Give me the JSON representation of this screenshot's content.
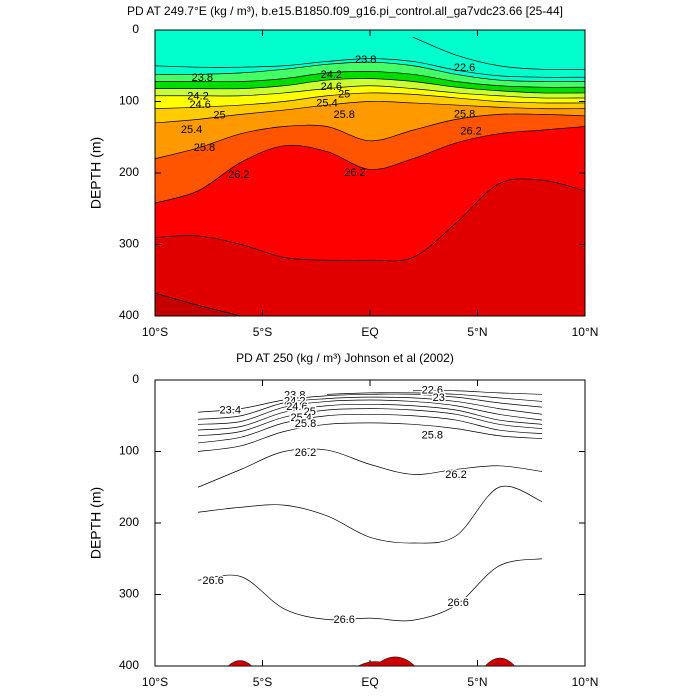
{
  "chart_data": [
    {
      "type": "contour",
      "title": "PD AT 249.7°E (kg / m³), b.e15.B1850.f09_g16.pi_control.all_ga7vdc23.66 [25-44]",
      "ylabel": "DEPTH (m)",
      "xlim": [
        -10,
        10
      ],
      "ylim": [
        400,
        0
      ],
      "xticks": [
        {
          "value": -10,
          "label": "10°S"
        },
        {
          "value": -5,
          "label": "5°S"
        },
        {
          "value": 0,
          "label": "EQ"
        },
        {
          "value": 5,
          "label": "5°N"
        },
        {
          "value": 10,
          "label": "10°N"
        }
      ],
      "yticks": [
        0,
        100,
        200,
        300,
        400
      ],
      "background_color": "#00ffcc",
      "x": [
        -10,
        -8,
        -6,
        -4,
        -2,
        0,
        2,
        4,
        6,
        8,
        10
      ],
      "contours": [
        {
          "level": 22.6,
          "depths": [
            null,
            null,
            null,
            null,
            null,
            null,
            10,
            35,
            50,
            55,
            55
          ]
        },
        {
          "level": 23.4,
          "depths": [
            50,
            52,
            52,
            50,
            44,
            40,
            44,
            56,
            64,
            66,
            66
          ]
        },
        {
          "level": 23.8,
          "color": "#44ff66",
          "depths": [
            62,
            62,
            60,
            55,
            48,
            45,
            50,
            62,
            70,
            72,
            72
          ]
        },
        {
          "level": 24.2,
          "color": "#00dd00",
          "depths": [
            72,
            72,
            72,
            68,
            60,
            58,
            62,
            72,
            78,
            80,
            80
          ]
        },
        {
          "level": 24.6,
          "color": "#ccff33",
          "depths": [
            82,
            82,
            82,
            78,
            70,
            68,
            72,
            80,
            85,
            88,
            88
          ]
        },
        {
          "level": 25,
          "color": "#ffff00",
          "depths": [
            92,
            92,
            92,
            88,
            82,
            78,
            82,
            88,
            92,
            95,
            95
          ]
        },
        {
          "level": 25.4,
          "color": "#ffcc00",
          "depths": [
            110,
            108,
            105,
            100,
            92,
            88,
            90,
            95,
            100,
            102,
            102
          ]
        },
        {
          "level": 25.8,
          "color": "#ff9900",
          "depths": [
            130,
            125,
            118,
            112,
            105,
            100,
            102,
            105,
            108,
            110,
            110
          ]
        },
        {
          "level": 26,
          "color": "#ff5500",
          "depths": [
            180,
            165,
            145,
            135,
            135,
            155,
            140,
            125,
            118,
            118,
            120
          ]
        },
        {
          "level": 26.2,
          "color": "#ff0000",
          "depths": [
            242,
            225,
            185,
            162,
            170,
            195,
            180,
            158,
            145,
            140,
            135
          ]
        },
        {
          "level": 26.6,
          "color": "#e00000",
          "depths": [
            290,
            288,
            300,
            318,
            322,
            322,
            318,
            270,
            215,
            210,
            225
          ]
        },
        {
          "level": 27,
          "color": "#c40000",
          "depths": [
            368,
            385,
            400,
            null,
            null,
            null,
            null,
            null,
            null,
            null,
            null
          ]
        }
      ],
      "contour_labels": [
        {
          "level": 23.8,
          "x": -7.8,
          "y": 67
        },
        {
          "level": 24.2,
          "x": -8,
          "y": 93
        },
        {
          "level": 24.6,
          "x": -7.9,
          "y": 105
        },
        {
          "level": 25,
          "x": -7,
          "y": 120
        },
        {
          "level": 25.4,
          "x": -8.3,
          "y": 140
        },
        {
          "level": 25.8,
          "x": -7.7,
          "y": 165
        },
        {
          "level": 26.2,
          "x": -6.1,
          "y": 203
        },
        {
          "level": 23.8,
          "x": -0.2,
          "y": 42
        },
        {
          "level": 24.2,
          "x": -1.8,
          "y": 63
        },
        {
          "level": 24.6,
          "x": -1.8,
          "y": 80
        },
        {
          "level": 25,
          "x": -1.2,
          "y": 90
        },
        {
          "level": 25.4,
          "x": -2,
          "y": 103
        },
        {
          "level": 25.8,
          "x": -1.2,
          "y": 119
        },
        {
          "level": 26.2,
          "x": -0.7,
          "y": 200
        },
        {
          "level": 22.6,
          "x": 4.4,
          "y": 53
        },
        {
          "level": 25.8,
          "x": 4.4,
          "y": 118
        },
        {
          "level": 26.2,
          "x": 4.7,
          "y": 142
        }
      ]
    },
    {
      "type": "contour",
      "title": "PD AT 250 (kg / m³) Johnson et al (2002)",
      "ylabel": "DEPTH (m)",
      "xlim": [
        -10,
        10
      ],
      "ylim": [
        400,
        0
      ],
      "xticks": [
        {
          "value": -10,
          "label": "10°S"
        },
        {
          "value": -5,
          "label": "5°S"
        },
        {
          "value": 0,
          "label": "EQ"
        },
        {
          "value": 5,
          "label": "5°N"
        },
        {
          "value": 10,
          "label": "10°N"
        }
      ],
      "yticks": [
        0,
        100,
        200,
        300,
        400
      ],
      "x": [
        -8,
        -6,
        -4,
        -2,
        0,
        2,
        4,
        6,
        8
      ],
      "contours": [
        {
          "level": 22.6,
          "depths": [
            null,
            null,
            null,
            null,
            null,
            15,
            15,
            18,
            20
          ]
        },
        {
          "level": 23,
          "depths": [
            null,
            null,
            null,
            20,
            18,
            18,
            20,
            25,
            30
          ]
        },
        {
          "level": 23.4,
          "depths": [
            45,
            40,
            28,
            22,
            20,
            20,
            24,
            32,
            38
          ]
        },
        {
          "level": 23.8,
          "depths": [
            55,
            50,
            32,
            26,
            24,
            25,
            30,
            40,
            48
          ]
        },
        {
          "level": 24.2,
          "depths": [
            62,
            58,
            38,
            30,
            28,
            30,
            36,
            48,
            56
          ]
        },
        {
          "level": 24.6,
          "depths": [
            70,
            65,
            45,
            36,
            34,
            36,
            42,
            56,
            62
          ]
        },
        {
          "level": 25,
          "depths": [
            78,
            72,
            52,
            42,
            40,
            42,
            48,
            62,
            68
          ]
        },
        {
          "level": 25.4,
          "depths": [
            88,
            80,
            60,
            50,
            48,
            50,
            56,
            70,
            75
          ]
        },
        {
          "level": 25.8,
          "depths": [
            100,
            92,
            72,
            62,
            60,
            62,
            68,
            78,
            82
          ]
        },
        {
          "level": 26.2,
          "depths": [
            150,
            125,
            100,
            98,
            118,
            132,
            125,
            120,
            128
          ]
        },
        {
          "level": 26.4,
          "depths": [
            185,
            178,
            175,
            190,
            220,
            228,
            218,
            150,
            170
          ]
        },
        {
          "level": 26.6,
          "depths": [
            280,
            275,
            320,
            335,
            333,
            336,
            315,
            260,
            250
          ]
        }
      ],
      "contour_labels": [
        {
          "level": 23.4,
          "x": -6.5,
          "y": 43
        },
        {
          "level": 23.8,
          "x": -3.5,
          "y": 22
        },
        {
          "level": 24.2,
          "x": -3.5,
          "y": 30
        },
        {
          "level": 24.6,
          "x": -3.4,
          "y": 38
        },
        {
          "level": 25,
          "x": -2.8,
          "y": 45
        },
        {
          "level": 25.4,
          "x": -3.2,
          "y": 53
        },
        {
          "level": 25.8,
          "x": -3,
          "y": 62
        },
        {
          "level": 22.6,
          "x": 2.9,
          "y": 15
        },
        {
          "level": 23,
          "x": 3.2,
          "y": 25
        },
        {
          "level": 25.8,
          "x": 2.9,
          "y": 78
        },
        {
          "level": 26.2,
          "x": -3,
          "y": 102
        },
        {
          "level": 26.2,
          "x": 4,
          "y": 133
        },
        {
          "level": 26.6,
          "x": -7.3,
          "y": 281
        },
        {
          "level": 26.6,
          "x": -1.2,
          "y": 336
        },
        {
          "level": 26.6,
          "x": 4.1,
          "y": 312
        }
      ]
    }
  ]
}
